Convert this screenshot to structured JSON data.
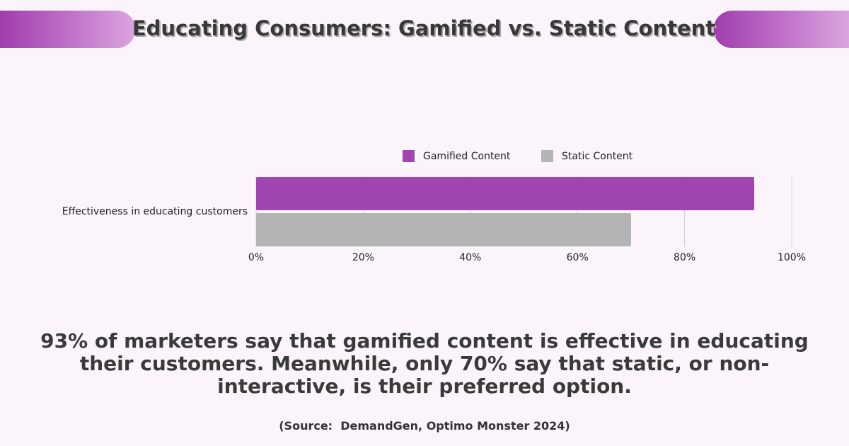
{
  "chart_data": {
    "type": "hbar",
    "title": "Educating Consumers: Gamified vs. Static Content",
    "categories": [
      "Effectiveness in educating customers"
    ],
    "series": [
      {
        "name": "Gamified Content",
        "color": "#a145b1",
        "values": [
          93
        ]
      },
      {
        "name": "Static Content",
        "color": "#b4b4b4",
        "values": [
          70
        ]
      }
    ],
    "xlim": [
      0,
      100
    ],
    "xticks": [
      {
        "value": 0,
        "label": "0%"
      },
      {
        "value": 20,
        "label": "20%"
      },
      {
        "value": 40,
        "label": "40%"
      },
      {
        "value": 60,
        "label": "60%"
      },
      {
        "value": 80,
        "label": "80%"
      },
      {
        "value": 100,
        "label": "100%"
      }
    ],
    "grid": true,
    "legend": "top",
    "caption": "93% of marketers say that gamified content is effective in educating their customers. Meanwhile, only 70% say that static, or non-interactive, is their preferred option.",
    "source": "(Source:  DemandGen, Optimo Monster 2024)"
  }
}
